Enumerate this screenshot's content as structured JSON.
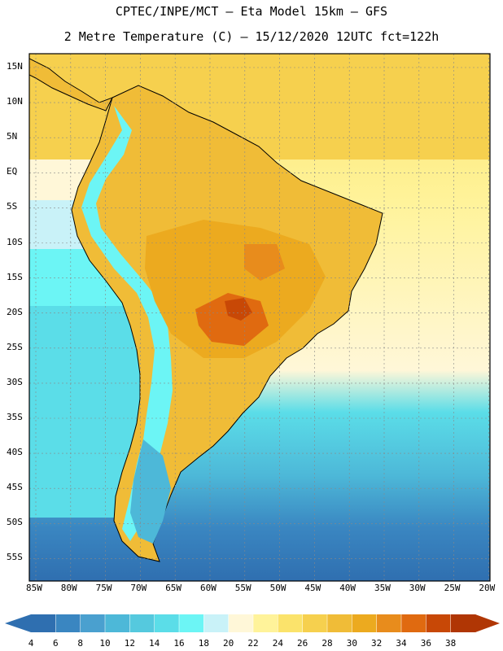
{
  "title_line1": "CPTEC/INPE/MCT –  Eta Model 15km – GFS",
  "title_line2": "2 Metre Temperature (C) – 15/12/2020 12UTC fct=122h",
  "lat_labels": [
    "15N",
    "10N",
    "5N",
    "EQ",
    "5S",
    "10S",
    "15S",
    "20S",
    "25S",
    "30S",
    "35S",
    "40S",
    "45S",
    "50S",
    "55S"
  ],
  "lon_labels": [
    "85W",
    "80W",
    "75W",
    "70W",
    "65W",
    "60W",
    "55W",
    "50W",
    "45W",
    "40W",
    "35W",
    "30W",
    "25W",
    "20W"
  ],
  "colorbar": {
    "ticks": [
      "4",
      "6",
      "8",
      "10",
      "12",
      "14",
      "16",
      "18",
      "20",
      "22",
      "24",
      "26",
      "28",
      "30",
      "32",
      "34",
      "36",
      "38"
    ],
    "colors": [
      "#2f6fb0",
      "#3a86c1",
      "#4aa0cf",
      "#4db8d8",
      "#55c9de",
      "#5bdde8",
      "#6cf5f5",
      "#c9f2f8",
      "#fff7d8",
      "#fff39a",
      "#fbe36b",
      "#f6d04e",
      "#f0bc37",
      "#ecaa1f",
      "#e88c1c",
      "#e06a10",
      "#c84806",
      "#b03604"
    ]
  }
}
